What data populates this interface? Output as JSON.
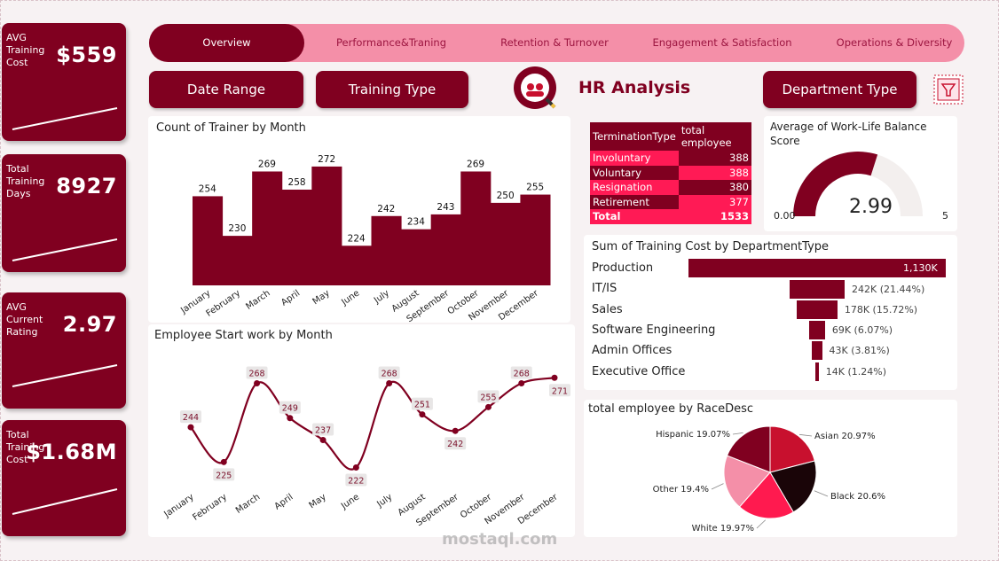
{
  "kpis": [
    {
      "label": "AVG Training Cost",
      "value": "$559"
    },
    {
      "label": "Total Training Days",
      "value": "8927"
    },
    {
      "label": "AVG Current Rating",
      "value": "2.97"
    },
    {
      "label": "Total Training Cost",
      "value": "$1.68M"
    }
  ],
  "tabs": [
    {
      "label": "Overview",
      "active": true
    },
    {
      "label": "Performance&Traning",
      "active": false
    },
    {
      "label": "Retention & Turnover",
      "active": false
    },
    {
      "label": "Engagement & Satisfaction",
      "active": false
    },
    {
      "label": "Operations & Diversity",
      "active": false
    }
  ],
  "filters": {
    "date_range": "Date Range",
    "training_type": "Training Type",
    "department_type": "Department Type"
  },
  "header": {
    "title": "HR Analysis"
  },
  "colors": {
    "primary": "#800020",
    "accent": "#ff1a55",
    "tab_bg": "#f48fa8"
  },
  "icons": {
    "logo": "hr-analysis-logo-icon",
    "filter": "filter-funnel-icon"
  },
  "termination_table": {
    "headers": [
      "TerminationType",
      "total employee"
    ],
    "rows": [
      [
        "Involuntary",
        "388"
      ],
      [
        "Voluntary",
        "388"
      ],
      [
        "Resignation",
        "380"
      ],
      [
        "Retirement",
        "377"
      ]
    ],
    "total": [
      "Total",
      "1533"
    ]
  },
  "gauge": {
    "title": "Average of Work-Life Balance Score",
    "value": 2.99,
    "value_label": "2.99",
    "min_label": "0.00",
    "max_label": "5",
    "min": 0,
    "max": 5
  },
  "dept_cost": {
    "title": "Sum of Training Cost by DepartmentType",
    "items": [
      {
        "label": "Production",
        "value": 1130,
        "display": "1,130K"
      },
      {
        "label": "IT/IS",
        "value": 242,
        "display": "242K (21.44%)"
      },
      {
        "label": "Sales",
        "value": 178,
        "display": "178K (15.72%)"
      },
      {
        "label": "Software Engineering",
        "value": 69,
        "display": "69K (6.07%)"
      },
      {
        "label": "Admin Offices",
        "value": 43,
        "display": "43K (3.81%)"
      },
      {
        "label": "Executive Office",
        "value": 14,
        "display": "14K (1.24%)"
      }
    ]
  },
  "chart_data": [
    {
      "type": "bar",
      "title": "Count of Trainer by Month",
      "categories": [
        "January",
        "February",
        "March",
        "April",
        "May",
        "June",
        "July",
        "August",
        "September",
        "October",
        "November",
        "December"
      ],
      "values": [
        254,
        230,
        269,
        258,
        272,
        224,
        242,
        234,
        243,
        269,
        250,
        255
      ],
      "ylim": [
        200,
        280
      ]
    },
    {
      "type": "line",
      "title": "Employee Start work by Month",
      "categories": [
        "January",
        "February",
        "March",
        "April",
        "May",
        "June",
        "July",
        "August",
        "September",
        "October",
        "November",
        "December"
      ],
      "values": [
        244,
        225,
        268,
        249,
        237,
        222,
        268,
        251,
        242,
        255,
        268,
        271
      ],
      "ylim": [
        215,
        275
      ]
    },
    {
      "type": "pie",
      "title": "total employee by RaceDesc",
      "slices": [
        {
          "label": "Asian 20.97%",
          "value": 20.97,
          "color": "#c8102e"
        },
        {
          "label": "Black 20.6%",
          "value": 20.6,
          "color": "#1a0508"
        },
        {
          "label": "White 19.97%",
          "value": 19.97,
          "color": "#ff1a4f"
        },
        {
          "label": "Other 19.4%",
          "value": 19.4,
          "color": "#f48fa8"
        },
        {
          "label": "Hispanic 19.07%",
          "value": 19.07,
          "color": "#800020"
        }
      ]
    }
  ],
  "watermark": "mostaql.com"
}
